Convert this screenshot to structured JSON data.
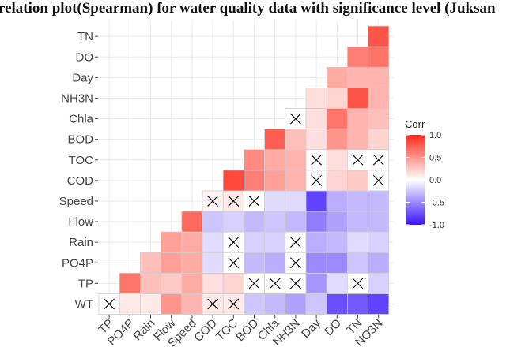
{
  "chart_data": {
    "type": "heatmap",
    "title": "relation plot(Spearman) for water quality data with significance level (Juksan",
    "variables": [
      "WT",
      "TP",
      "PO4P",
      "Rain",
      "Flow",
      "Speed",
      "COD",
      "TOC",
      "BOD",
      "Chla",
      "NH3N",
      "Day",
      "DO",
      "TN",
      "NO3N"
    ],
    "x_categories": [
      "TP",
      "PO4P",
      "Rain",
      "Flow",
      "Speed",
      "COD",
      "TOC",
      "BOD",
      "Chla",
      "NH3N",
      "Day",
      "DO",
      "TN",
      "NO3N"
    ],
    "y_categories": [
      "WT",
      "TP",
      "PO4P",
      "Rain",
      "Flow",
      "Speed",
      "COD",
      "TOC",
      "BOD",
      "Chla",
      "NH3N",
      "Day",
      "DO",
      "TN"
    ],
    "cells": [
      {
        "x": "TP",
        "y": "WT",
        "value": 0.0,
        "insignificant": true
      },
      {
        "x": "PO4P",
        "y": "WT",
        "value": 0.1
      },
      {
        "x": "PO4P",
        "y": "TP",
        "value": 0.65
      },
      {
        "x": "Rain",
        "y": "WT",
        "value": 0.1
      },
      {
        "x": "Rain",
        "y": "TP",
        "value": 0.3
      },
      {
        "x": "Rain",
        "y": "PO4P",
        "value": 0.3
      },
      {
        "x": "Flow",
        "y": "WT",
        "value": 0.5
      },
      {
        "x": "Flow",
        "y": "TP",
        "value": 0.25
      },
      {
        "x": "Flow",
        "y": "PO4P",
        "value": 0.45
      },
      {
        "x": "Flow",
        "y": "Rain",
        "value": 0.45
      },
      {
        "x": "Speed",
        "y": "WT",
        "value": 0.35
      },
      {
        "x": "Speed",
        "y": "TP",
        "value": 0.4
      },
      {
        "x": "Speed",
        "y": "PO4P",
        "value": 0.4
      },
      {
        "x": "Speed",
        "y": "Rain",
        "value": 0.4
      },
      {
        "x": "Speed",
        "y": "Flow",
        "value": 0.7
      },
      {
        "x": "COD",
        "y": "WT",
        "value": 0.1,
        "insignificant": true
      },
      {
        "x": "COD",
        "y": "TP",
        "value": 0.15
      },
      {
        "x": "COD",
        "y": "PO4P",
        "value": -0.15
      },
      {
        "x": "COD",
        "y": "Rain",
        "value": -0.15
      },
      {
        "x": "COD",
        "y": "Flow",
        "value": -0.25
      },
      {
        "x": "COD",
        "y": "Speed",
        "value": 0.05,
        "insignificant": true
      },
      {
        "x": "TOC",
        "y": "WT",
        "value": 0.1,
        "insignificant": true
      },
      {
        "x": "TOC",
        "y": "TP",
        "value": 0.2
      },
      {
        "x": "TOC",
        "y": "PO4P",
        "value": 0.0,
        "insignificant": true
      },
      {
        "x": "TOC",
        "y": "Rain",
        "value": 0.0,
        "insignificant": true
      },
      {
        "x": "TOC",
        "y": "Flow",
        "value": -0.2
      },
      {
        "x": "TOC",
        "y": "Speed",
        "value": 0.1,
        "insignificant": true
      },
      {
        "x": "TOC",
        "y": "COD",
        "value": 0.85
      },
      {
        "x": "BOD",
        "y": "WT",
        "value": -0.25
      },
      {
        "x": "BOD",
        "y": "TP",
        "value": 0.0,
        "insignificant": true
      },
      {
        "x": "BOD",
        "y": "PO4P",
        "value": -0.3
      },
      {
        "x": "BOD",
        "y": "Rain",
        "value": -0.2
      },
      {
        "x": "BOD",
        "y": "Flow",
        "value": -0.3
      },
      {
        "x": "BOD",
        "y": "Speed",
        "value": 0.0,
        "insignificant": true
      },
      {
        "x": "BOD",
        "y": "COD",
        "value": 0.6
      },
      {
        "x": "BOD",
        "y": "TOC",
        "value": 0.55
      },
      {
        "x": "Chla",
        "y": "WT",
        "value": -0.3
      },
      {
        "x": "Chla",
        "y": "TP",
        "value": 0.0,
        "insignificant": true
      },
      {
        "x": "Chla",
        "y": "PO4P",
        "value": -0.35
      },
      {
        "x": "Chla",
        "y": "Rain",
        "value": -0.2
      },
      {
        "x": "Chla",
        "y": "Flow",
        "value": -0.25
      },
      {
        "x": "Chla",
        "y": "Speed",
        "value": -0.15
      },
      {
        "x": "Chla",
        "y": "COD",
        "value": 0.45
      },
      {
        "x": "Chla",
        "y": "TOC",
        "value": 0.4
      },
      {
        "x": "Chla",
        "y": "BOD",
        "value": 0.75
      },
      {
        "x": "NH3N",
        "y": "WT",
        "value": -0.4
      },
      {
        "x": "NH3N",
        "y": "TP",
        "value": 0.0,
        "insignificant": true
      },
      {
        "x": "NH3N",
        "y": "PO4P",
        "value": 0.0,
        "insignificant": true
      },
      {
        "x": "NH3N",
        "y": "Rain",
        "value": 0.0,
        "insignificant": true
      },
      {
        "x": "NH3N",
        "y": "Flow",
        "value": -0.3
      },
      {
        "x": "NH3N",
        "y": "Speed",
        "value": -0.15
      },
      {
        "x": "NH3N",
        "y": "COD",
        "value": 0.35
      },
      {
        "x": "NH3N",
        "y": "TOC",
        "value": 0.35
      },
      {
        "x": "NH3N",
        "y": "BOD",
        "value": 0.3
      },
      {
        "x": "NH3N",
        "y": "Chla",
        "value": 0.0,
        "insignificant": true
      },
      {
        "x": "Day",
        "y": "WT",
        "value": -0.25
      },
      {
        "x": "Day",
        "y": "TP",
        "value": -0.45
      },
      {
        "x": "Day",
        "y": "PO4P",
        "value": -0.5
      },
      {
        "x": "Day",
        "y": "Rain",
        "value": -0.35
      },
      {
        "x": "Day",
        "y": "Flow",
        "value": -0.55
      },
      {
        "x": "Day",
        "y": "Speed",
        "value": -0.8
      },
      {
        "x": "Day",
        "y": "COD",
        "value": 0.0,
        "insignificant": true
      },
      {
        "x": "Day",
        "y": "TOC",
        "value": 0.0,
        "insignificant": true
      },
      {
        "x": "Day",
        "y": "BOD",
        "value": 0.15
      },
      {
        "x": "Day",
        "y": "Chla",
        "value": 0.15
      },
      {
        "x": "Day",
        "y": "NH3N",
        "value": 0.15
      },
      {
        "x": "DO",
        "y": "WT",
        "value": -0.75
      },
      {
        "x": "DO",
        "y": "TP",
        "value": -0.15
      },
      {
        "x": "DO",
        "y": "PO4P",
        "value": -0.5
      },
      {
        "x": "DO",
        "y": "Rain",
        "value": -0.3
      },
      {
        "x": "DO",
        "y": "Flow",
        "value": -0.4
      },
      {
        "x": "DO",
        "y": "Speed",
        "value": -0.35
      },
      {
        "x": "DO",
        "y": "COD",
        "value": 0.2
      },
      {
        "x": "DO",
        "y": "TOC",
        "value": 0.15
      },
      {
        "x": "DO",
        "y": "BOD",
        "value": 0.5
      },
      {
        "x": "DO",
        "y": "Chla",
        "value": 0.65
      },
      {
        "x": "DO",
        "y": "NH3N",
        "value": 0.2
      },
      {
        "x": "DO",
        "y": "Day",
        "value": 0.4
      },
      {
        "x": "TN",
        "y": "WT",
        "value": -0.7
      },
      {
        "x": "TN",
        "y": "TP",
        "value": 0.0,
        "insignificant": true
      },
      {
        "x": "TN",
        "y": "PO4P",
        "value": -0.25
      },
      {
        "x": "TN",
        "y": "Rain",
        "value": -0.15
      },
      {
        "x": "TN",
        "y": "Flow",
        "value": -0.3
      },
      {
        "x": "TN",
        "y": "Speed",
        "value": -0.3
      },
      {
        "x": "TN",
        "y": "COD",
        "value": 0.25
      },
      {
        "x": "TN",
        "y": "TOC",
        "value": 0.0,
        "insignificant": true
      },
      {
        "x": "TN",
        "y": "BOD",
        "value": 0.35
      },
      {
        "x": "TN",
        "y": "Chla",
        "value": 0.35
      },
      {
        "x": "TN",
        "y": "NH3N",
        "value": 0.8
      },
      {
        "x": "TN",
        "y": "Day",
        "value": 0.35
      },
      {
        "x": "TN",
        "y": "DO",
        "value": 0.6
      },
      {
        "x": "NO3N",
        "y": "WT",
        "value": -0.8
      },
      {
        "x": "NO3N",
        "y": "TP",
        "value": -0.2
      },
      {
        "x": "NO3N",
        "y": "PO4P",
        "value": -0.35
      },
      {
        "x": "NO3N",
        "y": "Rain",
        "value": -0.2
      },
      {
        "x": "NO3N",
        "y": "Flow",
        "value": -0.3
      },
      {
        "x": "NO3N",
        "y": "Speed",
        "value": -0.3
      },
      {
        "x": "NO3N",
        "y": "COD",
        "value": 0.0,
        "insignificant": true
      },
      {
        "x": "NO3N",
        "y": "TOC",
        "value": 0.0,
        "insignificant": true
      },
      {
        "x": "NO3N",
        "y": "BOD",
        "value": 0.2
      },
      {
        "x": "NO3N",
        "y": "Chla",
        "value": 0.3
      },
      {
        "x": "NO3N",
        "y": "NH3N",
        "value": 0.35
      },
      {
        "x": "NO3N",
        "y": "Day",
        "value": 0.35
      },
      {
        "x": "NO3N",
        "y": "DO",
        "value": 0.65
      },
      {
        "x": "NO3N",
        "y": "TN",
        "value": 0.8
      }
    ],
    "legend": {
      "title": "Corr",
      "range": [
        -1,
        1
      ],
      "ticks": [
        1.0,
        0.5,
        0.0,
        -0.5,
        -1.0
      ],
      "tick_labels": [
        "1.0",
        "0.5",
        "0.0",
        "-0.5",
        "-1.0"
      ],
      "position": "right"
    },
    "colors": {
      "low": "#3a13ff",
      "mid": "#ffffff",
      "high": "#ff2a1a",
      "panel_bg": "#ffffff",
      "grid": "#ebebeb",
      "cell_border": "#cfcfcf"
    },
    "insignificant_marker": "cross-icon",
    "grid": true
  }
}
